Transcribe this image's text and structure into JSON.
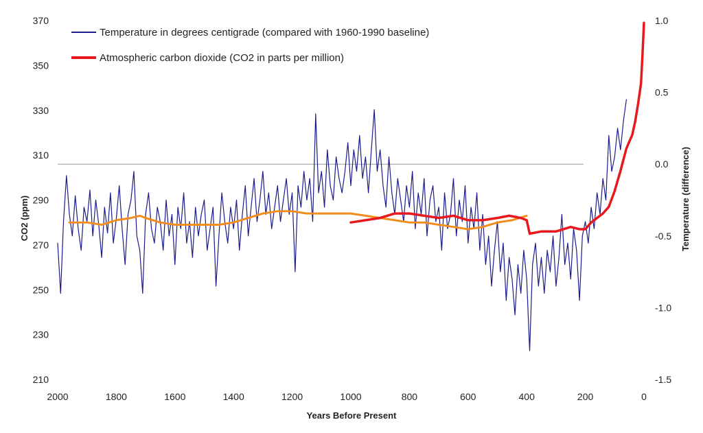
{
  "chart_data": {
    "type": "line",
    "xlabel": "Years Before Present",
    "ylabel_left": "CO2 (ppm)",
    "ylabel_right": "Temperature (difference)",
    "x_range": [
      2000,
      0
    ],
    "x_ticks": [
      "2000",
      "1800",
      "1600",
      "1400",
      "1200",
      "1000",
      "800",
      "600",
      "400",
      "200",
      "0"
    ],
    "y_left_range": [
      210,
      370
    ],
    "y_left_ticks": [
      "370",
      "350",
      "330",
      "310",
      "290",
      "270",
      "250",
      "230",
      "210"
    ],
    "y_right_range": [
      -1.5,
      1.0
    ],
    "y_right_ticks": [
      "1.0",
      "0.5",
      "0.0",
      "-0.5",
      "-1.0",
      "-1.5"
    ],
    "baseline_temperature": 0.0,
    "legend": [
      {
        "label": "Temperature in degrees centigrade (compared with 1960-1990 baseline)",
        "color": "#1a1a8c"
      },
      {
        "label": "Atmospheric carbon dioxide (CO2 in parts per million)",
        "color": "#e8191c"
      }
    ],
    "series": [
      {
        "axis": "right",
        "color": "#1a1a8c",
        "years_before_present": [
          2000,
          1990,
          1980,
          1970,
          1960,
          1950,
          1940,
          1930,
          1920,
          1910,
          1900,
          1890,
          1880,
          1870,
          1860,
          1850,
          1840,
          1830,
          1820,
          1810,
          1800,
          1790,
          1780,
          1770,
          1760,
          1750,
          1740,
          1730,
          1720,
          1710,
          1700,
          1690,
          1680,
          1670,
          1660,
          1650,
          1640,
          1630,
          1620,
          1610,
          1600,
          1590,
          1580,
          1570,
          1560,
          1550,
          1540,
          1530,
          1520,
          1510,
          1500,
          1490,
          1480,
          1470,
          1460,
          1450,
          1440,
          1430,
          1420,
          1410,
          1400,
          1390,
          1380,
          1370,
          1360,
          1350,
          1340,
          1330,
          1320,
          1310,
          1300,
          1290,
          1280,
          1270,
          1260,
          1250,
          1240,
          1230,
          1220,
          1210,
          1200,
          1190,
          1180,
          1170,
          1160,
          1150,
          1140,
          1130,
          1120,
          1110,
          1100,
          1090,
          1080,
          1070,
          1060,
          1050,
          1040,
          1030,
          1020,
          1010,
          1000,
          990,
          980,
          970,
          960,
          950,
          940,
          930,
          920,
          910,
          900,
          890,
          880,
          870,
          860,
          850,
          840,
          830,
          820,
          810,
          800,
          790,
          780,
          770,
          760,
          750,
          740,
          730,
          720,
          710,
          700,
          690,
          680,
          670,
          660,
          650,
          640,
          630,
          620,
          610,
          600,
          590,
          580,
          570,
          560,
          550,
          540,
          530,
          520,
          510,
          500,
          490,
          480,
          470,
          460,
          450,
          440,
          430,
          420,
          410,
          400,
          390,
          380,
          370,
          360,
          350,
          340,
          330,
          320,
          310,
          300,
          290,
          280,
          270,
          260,
          250,
          240,
          230,
          220,
          210,
          200,
          190,
          180,
          170,
          160,
          150,
          140,
          130,
          120,
          110,
          100,
          90,
          80,
          70,
          60,
          50,
          40,
          30,
          20,
          10,
          0
        ],
        "values": [
          -0.55,
          -0.9,
          -0.4,
          -0.08,
          -0.35,
          -0.5,
          -0.22,
          -0.45,
          -0.6,
          -0.3,
          -0.4,
          -0.18,
          -0.5,
          -0.25,
          -0.42,
          -0.65,
          -0.3,
          -0.48,
          -0.2,
          -0.55,
          -0.38,
          -0.15,
          -0.45,
          -0.7,
          -0.35,
          -0.25,
          -0.05,
          -0.5,
          -0.6,
          -0.9,
          -0.35,
          -0.2,
          -0.45,
          -0.55,
          -0.3,
          -0.4,
          -0.6,
          -0.25,
          -0.5,
          -0.35,
          -0.7,
          -0.3,
          -0.45,
          -0.2,
          -0.55,
          -0.4,
          -0.65,
          -0.3,
          -0.5,
          -0.35,
          -0.25,
          -0.6,
          -0.45,
          -0.3,
          -0.85,
          -0.5,
          -0.2,
          -0.4,
          -0.55,
          -0.3,
          -0.45,
          -0.25,
          -0.6,
          -0.35,
          -0.15,
          -0.5,
          -0.3,
          -0.1,
          -0.4,
          -0.25,
          -0.05,
          -0.35,
          -0.2,
          -0.45,
          -0.3,
          -0.15,
          -0.4,
          -0.25,
          -0.1,
          -0.35,
          -0.2,
          -0.75,
          -0.15,
          -0.3,
          -0.05,
          -0.25,
          -0.1,
          -0.4,
          0.35,
          -0.2,
          -0.05,
          -0.3,
          0.1,
          -0.15,
          -0.25,
          0.05,
          -0.1,
          -0.2,
          -0.05,
          0.15,
          -0.15,
          0.1,
          -0.05,
          0.2,
          -0.1,
          0.05,
          -0.2,
          0.1,
          0.38,
          -0.05,
          0.1,
          -0.15,
          -0.3,
          0.05,
          -0.2,
          -0.35,
          -0.1,
          -0.25,
          -0.4,
          -0.15,
          -0.3,
          -0.05,
          -0.45,
          -0.2,
          -0.35,
          -0.1,
          -0.5,
          -0.25,
          -0.15,
          -0.4,
          -0.3,
          -0.6,
          -0.2,
          -0.45,
          -0.35,
          -0.1,
          -0.5,
          -0.25,
          -0.4,
          -0.15,
          -0.55,
          -0.3,
          -0.45,
          -0.2,
          -0.6,
          -0.35,
          -0.7,
          -0.5,
          -0.85,
          -0.6,
          -0.4,
          -0.75,
          -0.55,
          -0.95,
          -0.65,
          -0.8,
          -1.05,
          -0.7,
          -0.9,
          -0.6,
          -0.8,
          -1.3,
          -0.7,
          -0.55,
          -0.85,
          -0.65,
          -0.9,
          -0.6,
          -0.75,
          -0.5,
          -0.85,
          -0.65,
          -0.35,
          -0.7,
          -0.55,
          -0.8,
          -0.45,
          -0.6,
          -0.95,
          -0.5,
          -0.4,
          -0.55,
          -0.3,
          -0.45,
          -0.2,
          -0.35,
          -0.1,
          -0.25,
          0.2,
          -0.05,
          0.05,
          0.25,
          0.1,
          0.3,
          0.45
        ]
      },
      {
        "axis": "left",
        "color": "#e8191c",
        "years_before_present": [
          1000,
          950,
          900,
          850,
          800,
          750,
          700,
          650,
          600,
          550,
          500,
          460,
          420,
          400,
          390,
          350,
          300,
          250,
          220,
          200,
          180,
          160,
          140,
          120,
          100,
          80,
          70,
          60,
          50,
          40,
          30,
          20,
          10,
          5,
          0
        ],
        "values": [
          280,
          281,
          282,
          284,
          284,
          283,
          282,
          283,
          281,
          281,
          282,
          283,
          282,
          281,
          275,
          276,
          276,
          278,
          277,
          277,
          280,
          282,
          284,
          287,
          294,
          303,
          308,
          313,
          316,
          319,
          325,
          333,
          342,
          355,
          369
        ]
      },
      {
        "axis": "left",
        "color": "#f28c1a",
        "years_before_present": [
          1960,
          1900,
          1850,
          1800,
          1750,
          1720,
          1700,
          1650,
          1600,
          1550,
          1500,
          1450,
          1400,
          1350,
          1300,
          1250,
          1200,
          1150,
          1100,
          1050,
          1000,
          950,
          900,
          850,
          800,
          750,
          700,
          650,
          600,
          550,
          500,
          450,
          400
        ],
        "values": [
          280,
          280,
          279,
          281,
          282,
          283,
          282,
          280,
          279,
          279,
          279,
          279,
          280,
          282,
          284,
          285,
          285,
          284,
          284,
          284,
          284,
          283,
          282,
          281,
          280,
          280,
          279,
          278,
          277,
          278,
          280,
          281,
          283
        ]
      }
    ]
  }
}
